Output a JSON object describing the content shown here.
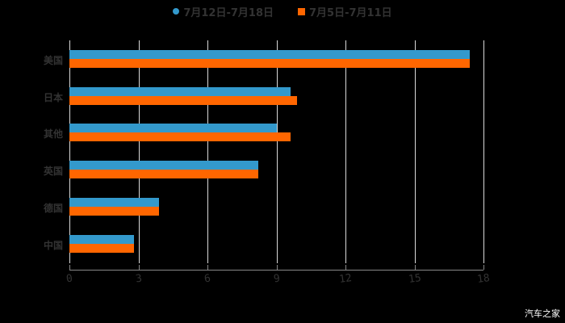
{
  "chart_data": {
    "type": "bar",
    "orientation": "horizontal",
    "title": "",
    "xlabel": "",
    "ylabel": "",
    "categories": [
      "美国",
      "日本",
      "其他",
      "英国",
      "德国",
      "中国"
    ],
    "series": [
      {
        "name": "7月12日-7月18日",
        "color": "#3399cc",
        "values": [
          17.4,
          9.6,
          9.0,
          8.2,
          3.9,
          2.8
        ]
      },
      {
        "name": "7月5日-7月11日",
        "color": "#ff6600",
        "values": [
          17.4,
          9.9,
          9.6,
          8.2,
          3.9,
          2.8
        ]
      }
    ],
    "xlim": [
      0,
      18
    ],
    "xticks": [
      "0",
      "3",
      "6",
      "9",
      "12",
      "15",
      "18"
    ],
    "grid": true,
    "legend_position": "top"
  },
  "watermark": "汽车之家"
}
